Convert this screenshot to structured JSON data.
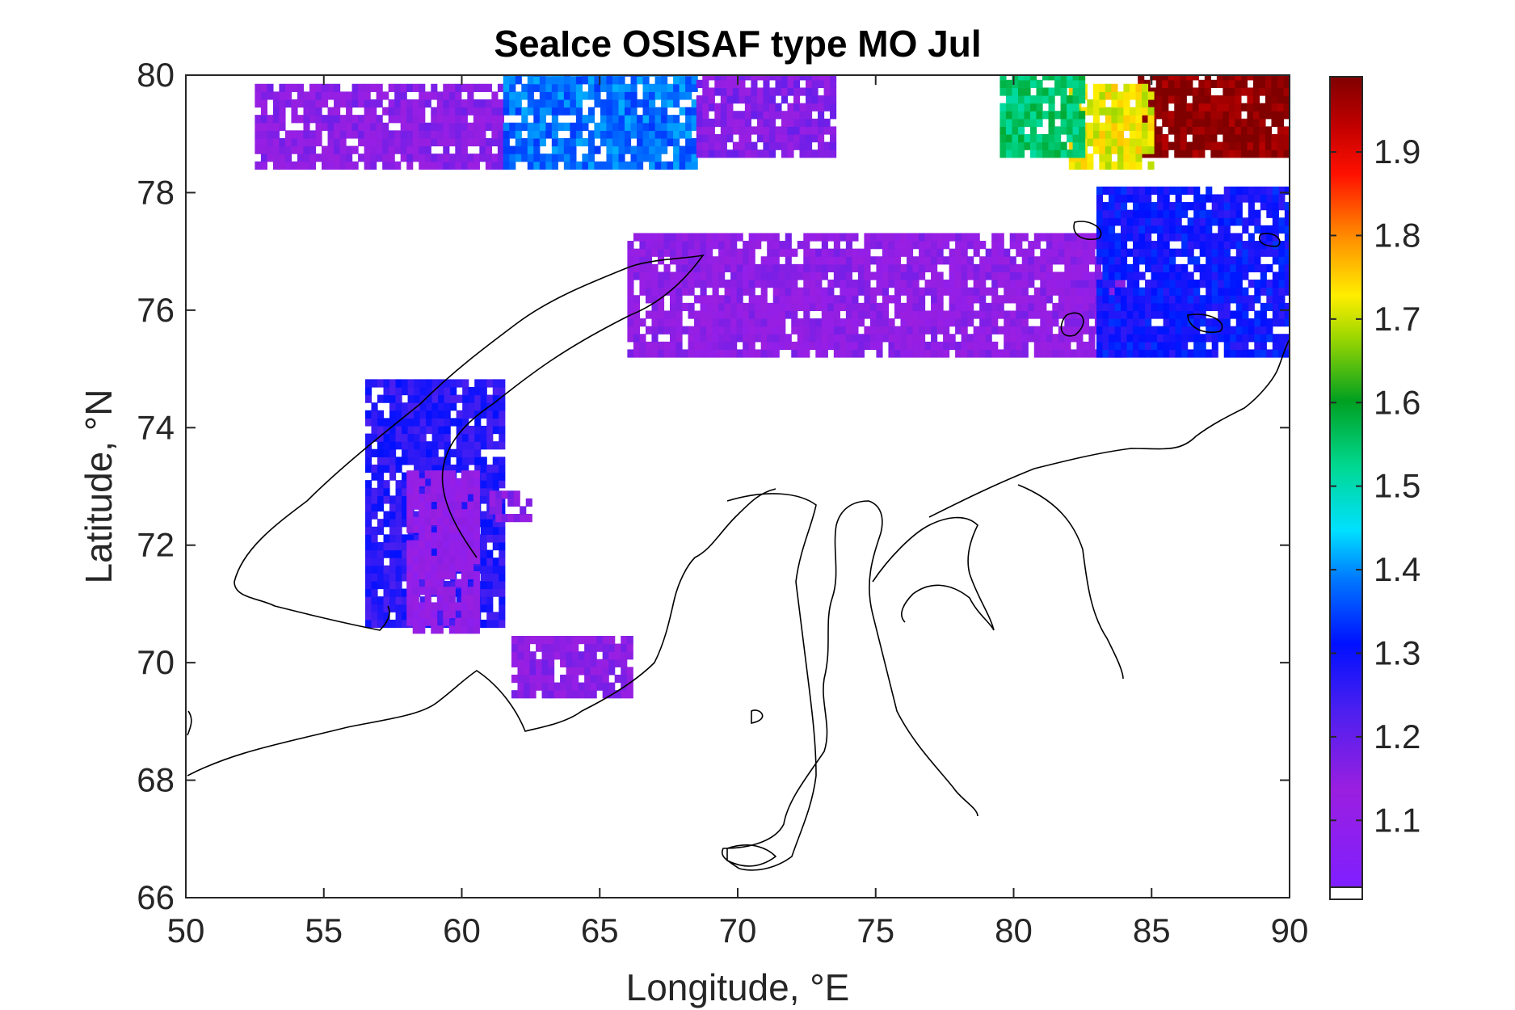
{
  "chart_data": {
    "type": "heatmap",
    "title": "SeaIce OSISAF type MO Jul",
    "xlabel": "Longitude, °E",
    "ylabel": "Latitude, °N",
    "xlim": [
      50,
      90
    ],
    "ylim": [
      66,
      80
    ],
    "xticks": [
      "50",
      "55",
      "60",
      "65",
      "70",
      "75",
      "80",
      "85",
      "90"
    ],
    "yticks": [
      "66",
      "68",
      "70",
      "72",
      "74",
      "76",
      "78",
      "80"
    ],
    "colorbar": {
      "range": [
        1.02,
        1.99
      ],
      "ticks": [
        "1.1",
        "1.2",
        "1.3",
        "1.4",
        "1.5",
        "1.6",
        "1.7",
        "1.8",
        "1.9"
      ],
      "colormap": "jet-like (violet → blue → cyan → green → yellow → red → dark red)"
    },
    "regions": [
      {
        "name": "north-strip-west",
        "lon": [
          52.5,
          61.5
        ],
        "lat": [
          78.4,
          79.8
        ],
        "value": 1.15
      },
      {
        "name": "north-strip-center",
        "lon": [
          61.5,
          68.5
        ],
        "lat": [
          78.4,
          80.0
        ],
        "value": 1.38
      },
      {
        "name": "north-strip-east",
        "lon": [
          68.5,
          73.5
        ],
        "lat": [
          78.6,
          80.0
        ],
        "value": 1.16
      },
      {
        "name": "kara-central-band",
        "lon": [
          66.0,
          84.0
        ],
        "lat": [
          75.2,
          77.3
        ],
        "value": 1.14
      },
      {
        "name": "novaya-zemlya-east",
        "lon": [
          56.5,
          61.5
        ],
        "lat": [
          70.6,
          74.8
        ],
        "value": 1.27
      },
      {
        "name": "novaya-zemlya-inner",
        "lon": [
          58.0,
          60.5
        ],
        "lat": [
          70.5,
          73.2
        ],
        "value": 1.12
      },
      {
        "name": "ne-high-ice",
        "lon": [
          84.5,
          90.0
        ],
        "lat": [
          78.6,
          80.0
        ],
        "value": 1.98
      },
      {
        "name": "ne-yellow",
        "lon": [
          82.0,
          85.0
        ],
        "lat": [
          78.4,
          79.8
        ],
        "value": 1.72
      },
      {
        "name": "ne-green",
        "lon": [
          79.5,
          82.5
        ],
        "lat": [
          78.6,
          80.0
        ],
        "value": 1.55
      },
      {
        "name": "ne-blue",
        "lon": [
          83.0,
          90.0
        ],
        "lat": [
          75.2,
          78.0
        ],
        "value": 1.3
      },
      {
        "name": "yamal-patch",
        "lon": [
          61.8,
          66.0
        ],
        "lat": [
          69.4,
          70.4
        ],
        "value": 1.15
      },
      {
        "name": "small-patch",
        "lon": [
          61.0,
          62.5
        ],
        "lat": [
          72.4,
          72.8
        ],
        "value": 1.15
      }
    ]
  }
}
